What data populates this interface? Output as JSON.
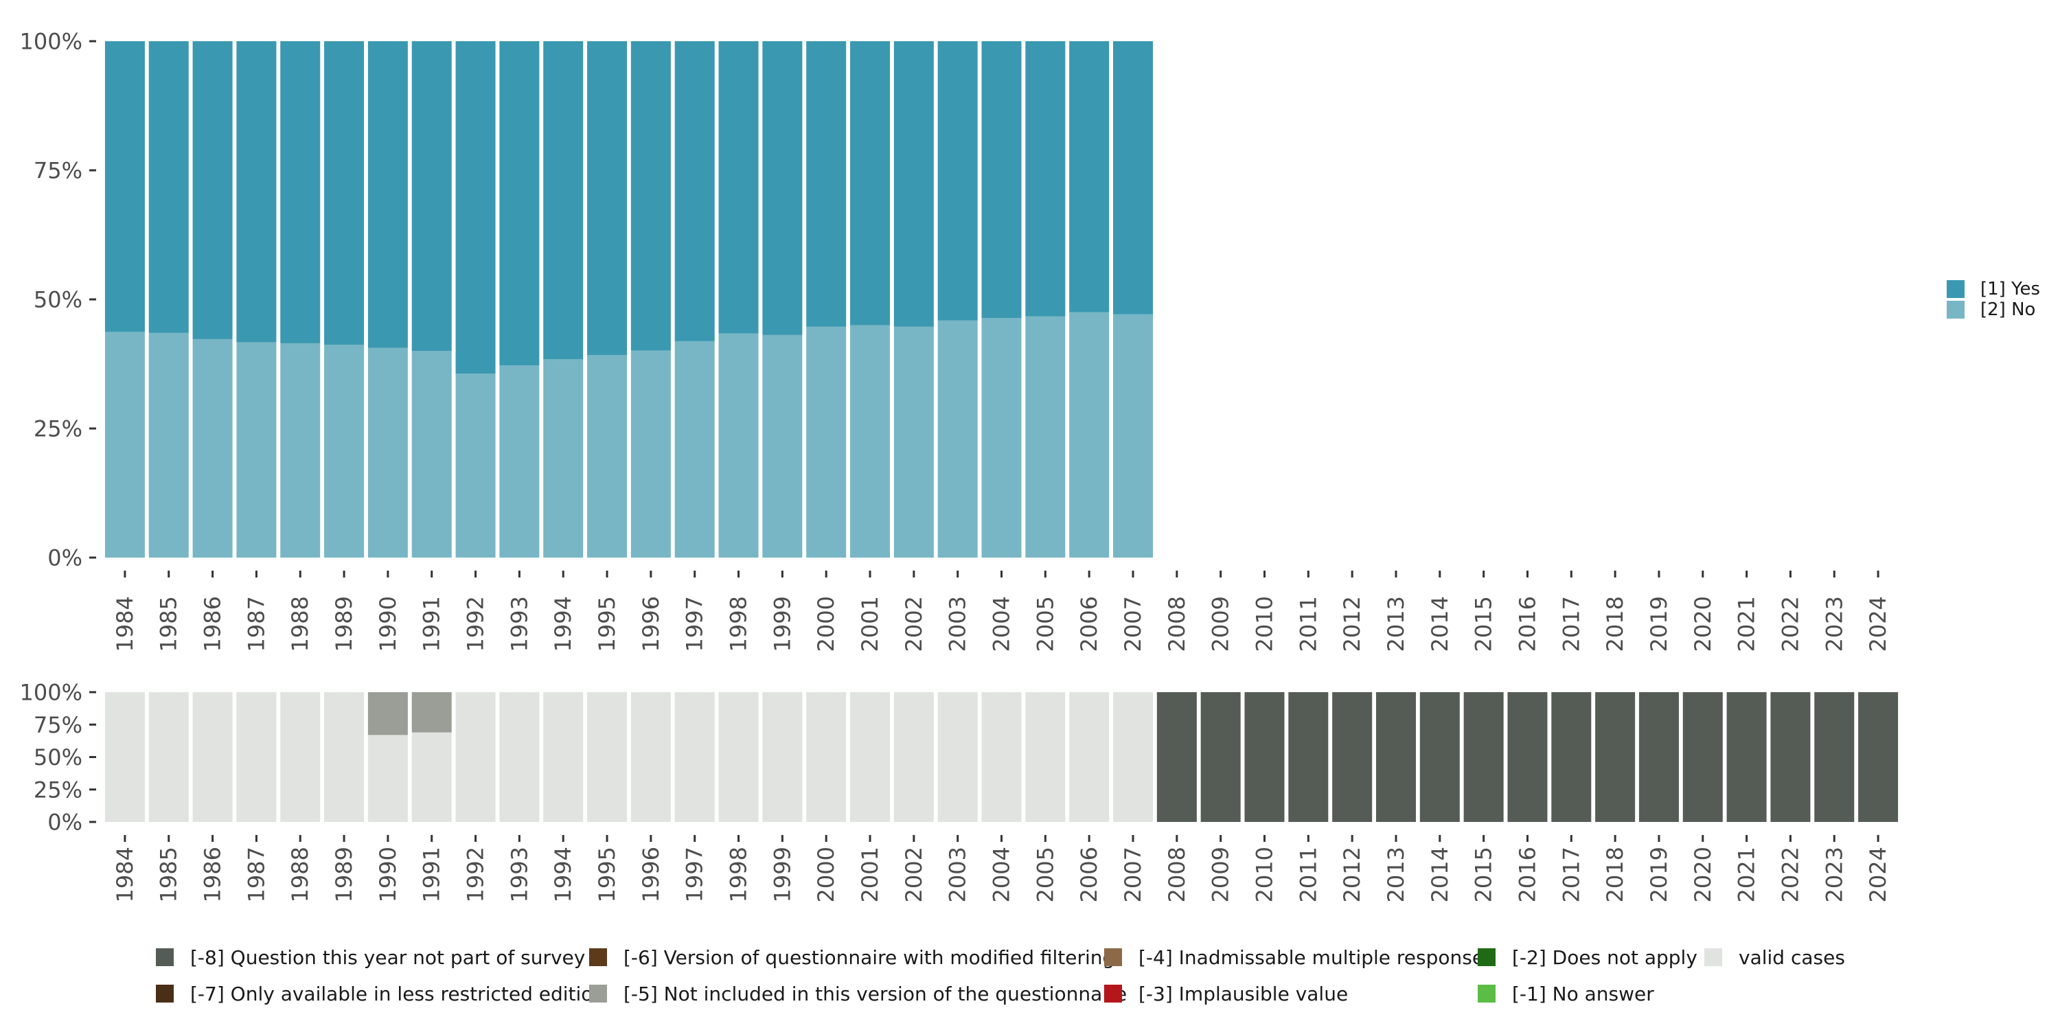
{
  "chart_data": [
    {
      "type": "bar",
      "stacked": true,
      "title": "",
      "xlabel": "",
      "ylabel": "",
      "ylim": [
        0,
        100
      ],
      "yticks": [
        "0%",
        "25%",
        "50%",
        "75%",
        "100%"
      ],
      "categories": [
        "1984",
        "1985",
        "1986",
        "1987",
        "1988",
        "1989",
        "1990",
        "1991",
        "1992",
        "1993",
        "1994",
        "1995",
        "1996",
        "1997",
        "1998",
        "1999",
        "2000",
        "2001",
        "2002",
        "2003",
        "2004",
        "2005",
        "2006",
        "2007",
        "2008",
        "2009",
        "2010",
        "2011",
        "2012",
        "2013",
        "2014",
        "2015",
        "2016",
        "2017",
        "2018",
        "2019",
        "2020",
        "2021",
        "2022",
        "2023",
        "2024"
      ],
      "series": [
        {
          "name": "[2] No",
          "color": "#78b6c5",
          "values": [
            43.7,
            43.5,
            42.3,
            41.7,
            41.5,
            41.2,
            40.6,
            40.0,
            35.6,
            37.2,
            38.4,
            39.2,
            40.1,
            41.9,
            43.4,
            43.1,
            44.7,
            45.0,
            44.7,
            45.9,
            46.4,
            46.7,
            47.5,
            47.1,
            null,
            null,
            null,
            null,
            null,
            null,
            null,
            null,
            null,
            null,
            null,
            null,
            null,
            null,
            null,
            null,
            null
          ]
        },
        {
          "name": "[1] Yes",
          "color": "#3b98b1",
          "values": [
            56.3,
            56.5,
            57.7,
            58.3,
            58.5,
            58.8,
            59.4,
            60.0,
            64.4,
            62.8,
            61.6,
            60.8,
            59.9,
            58.1,
            56.6,
            56.9,
            55.3,
            55.0,
            55.3,
            54.1,
            53.6,
            53.3,
            52.5,
            52.9,
            null,
            null,
            null,
            null,
            null,
            null,
            null,
            null,
            null,
            null,
            null,
            null,
            null,
            null,
            null,
            null,
            null
          ]
        }
      ],
      "legend": {
        "position": "right",
        "items": [
          {
            "label": "[1] Yes",
            "color": "#3b98b1"
          },
          {
            "label": "[2] No",
            "color": "#78b6c5"
          }
        ]
      }
    },
    {
      "type": "bar",
      "stacked": true,
      "title": "",
      "xlabel": "",
      "ylabel": "",
      "ylim": [
        0,
        100
      ],
      "yticks": [
        "0%",
        "25%",
        "50%",
        "75%",
        "100%"
      ],
      "categories": [
        "1984",
        "1985",
        "1986",
        "1987",
        "1988",
        "1989",
        "1990",
        "1991",
        "1992",
        "1993",
        "1994",
        "1995",
        "1996",
        "1997",
        "1998",
        "1999",
        "2000",
        "2001",
        "2002",
        "2003",
        "2004",
        "2005",
        "2006",
        "2007",
        "2008",
        "2009",
        "2010",
        "2011",
        "2012",
        "2013",
        "2014",
        "2015",
        "2016",
        "2017",
        "2018",
        "2019",
        "2020",
        "2021",
        "2022",
        "2023",
        "2024"
      ],
      "series": [
        {
          "name": "valid cases",
          "color": "#e0e3df",
          "values": [
            100,
            100,
            100,
            100,
            100,
            100,
            67,
            69,
            100,
            100,
            100,
            100,
            100,
            100,
            100,
            100,
            100,
            100,
            100,
            100,
            100,
            100,
            100,
            100,
            0,
            0,
            0,
            0,
            0,
            0,
            0,
            0,
            0,
            0,
            0,
            0,
            0,
            0,
            0,
            0,
            0
          ]
        },
        {
          "name": "[-5] Not included in this version of the questionnaire",
          "color": "#9b9e97",
          "values": [
            0,
            0,
            0,
            0,
            0,
            0,
            33,
            31,
            0,
            0,
            0,
            0,
            0,
            0,
            0,
            0,
            0,
            0,
            0,
            0,
            0,
            0,
            0,
            0,
            0,
            0,
            0,
            0,
            0,
            0,
            0,
            0,
            0,
            0,
            0,
            0,
            0,
            0,
            0,
            0,
            0
          ]
        },
        {
          "name": "[-8] Question this year not part of survey",
          "color": "#555c56",
          "values": [
            0,
            0,
            0,
            0,
            0,
            0,
            0,
            0,
            0,
            0,
            0,
            0,
            0,
            0,
            0,
            0,
            0,
            0,
            0,
            0,
            0,
            0,
            0,
            0,
            100,
            100,
            100,
            100,
            100,
            100,
            100,
            100,
            100,
            100,
            100,
            100,
            100,
            100,
            100,
            100,
            100
          ]
        }
      ],
      "legend": {
        "position": "bottom",
        "items": [
          {
            "label": "[-8] Question this year not part of survey",
            "color": "#555c56"
          },
          {
            "label": "[-7] Only available in less restricted edition",
            "color": "#4a2f17"
          },
          {
            "label": "[-6] Version of questionnaire with modified filtering",
            "color": "#5c3a1a"
          },
          {
            "label": "[-5] Not included in this version of the questionnaire",
            "color": "#9b9e97"
          },
          {
            "label": "[-4] Inadmissable multiple response",
            "color": "#8c6a48"
          },
          {
            "label": "[-3] Implausible value",
            "color": "#b3161b"
          },
          {
            "label": "[-2] Does not apply",
            "color": "#1f6b15"
          },
          {
            "label": "[-1] No answer",
            "color": "#5bbd45"
          },
          {
            "label": "valid cases",
            "color": "#e0e3df"
          }
        ]
      }
    }
  ]
}
